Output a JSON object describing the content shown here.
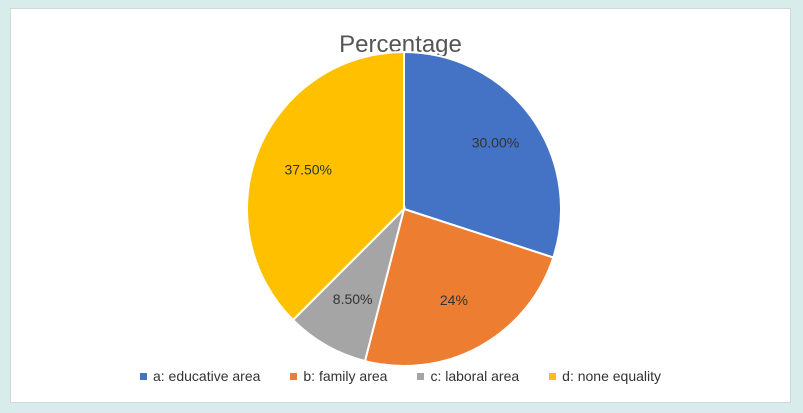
{
  "chart_data": {
    "type": "pie",
    "title": "Percentage",
    "slices": [
      {
        "legend": "a: educative area",
        "value": 30.0,
        "label": "30.00%",
        "color": "#4472c4"
      },
      {
        "legend": "b: family area",
        "value": 24.0,
        "label": "24%",
        "color": "#ed7d31"
      },
      {
        "legend": "c: laboral area",
        "value": 8.5,
        "label": "8.50%",
        "color": "#a5a5a5"
      },
      {
        "legend": "d: none equality",
        "value": 37.5,
        "label": "37.50%",
        "color": "#ffc000"
      }
    ],
    "legend_position": "bottom"
  }
}
